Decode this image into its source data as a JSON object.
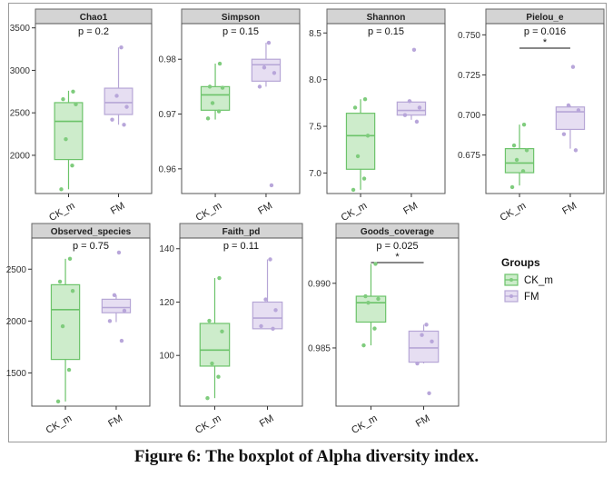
{
  "caption": "Figure 6: The boxplot of Alpha diversity index.",
  "colors": {
    "CK_m": {
      "line": "#6cc36a",
      "fill": "#cdeccb",
      "point": "#7fcc7d"
    },
    "FM": {
      "line": "#b6a6d6",
      "fill": "#e6def2",
      "point": "#b8a6da"
    },
    "strip_fill": "#d4d4d4",
    "strip_border": "#666666",
    "panel_border": "#555555",
    "grid": "#ffffff"
  },
  "legend": {
    "title": "Groups",
    "items": [
      {
        "label": "CK_m",
        "group": "CK_m"
      },
      {
        "label": "FM",
        "group": "FM"
      }
    ]
  },
  "chart_data": [
    {
      "type": "boxplot",
      "title": "Chao1",
      "pvalue": "p = 0.2",
      "significance": "",
      "categories": [
        "CK_m",
        "FM"
      ],
      "ylim": [
        1550,
        3550
      ],
      "yticks": [
        2000,
        2500,
        3000,
        3500
      ],
      "series": [
        {
          "group": "CK_m",
          "min": 1600,
          "q1": 1950,
          "median": 2400,
          "q3": 2620,
          "max": 2760,
          "points": [
            1600,
            1880,
            2190,
            2600,
            2660,
            2750
          ]
        },
        {
          "group": "FM",
          "min": 2360,
          "q1": 2480,
          "median": 2620,
          "q3": 2790,
          "max": 3270,
          "points": [
            2360,
            2420,
            2570,
            2700,
            3270
          ]
        }
      ]
    },
    {
      "type": "boxplot",
      "title": "Simpson",
      "pvalue": "p = 0.15",
      "significance": "",
      "categories": [
        "CK_m",
        "FM"
      ],
      "ylim": [
        0.9555,
        0.9865
      ],
      "yticks": [
        0.96,
        0.97,
        0.98
      ],
      "series": [
        {
          "group": "CK_m",
          "min": 0.969,
          "q1": 0.9707,
          "median": 0.9735,
          "q3": 0.975,
          "max": 0.9792,
          "points": [
            0.9692,
            0.9705,
            0.972,
            0.9748,
            0.975,
            0.9792
          ]
        },
        {
          "group": "FM",
          "min": 0.975,
          "q1": 0.976,
          "median": 0.979,
          "q3": 0.98,
          "max": 0.983,
          "points": [
            0.957,
            0.975,
            0.9775,
            0.9785,
            0.983
          ]
        }
      ]
    },
    {
      "type": "boxplot",
      "title": "Shannon",
      "pvalue": "p = 0.15",
      "significance": "",
      "categories": [
        "CK_m",
        "FM"
      ],
      "ylim": [
        6.78,
        8.6
      ],
      "yticks": [
        7.0,
        7.5,
        8.0,
        8.5
      ],
      "series": [
        {
          "group": "CK_m",
          "min": 6.82,
          "q1": 7.04,
          "median": 7.4,
          "q3": 7.64,
          "max": 7.79,
          "points": [
            6.82,
            6.94,
            7.18,
            7.4,
            7.7,
            7.79
          ]
        },
        {
          "group": "FM",
          "min": 7.57,
          "q1": 7.62,
          "median": 7.67,
          "q3": 7.76,
          "max": 7.77,
          "points": [
            7.55,
            7.62,
            7.7,
            7.77,
            8.32
          ]
        }
      ]
    },
    {
      "type": "boxplot",
      "title": "Pielou_e",
      "pvalue": "p = 0.016",
      "significance": "*",
      "categories": [
        "CK_m",
        "FM"
      ],
      "ylim": [
        0.651,
        0.757
      ],
      "yticks": [
        0.675,
        0.7,
        0.725,
        0.75
      ],
      "series": [
        {
          "group": "CK_m",
          "min": 0.656,
          "q1": 0.664,
          "median": 0.67,
          "q3": 0.679,
          "max": 0.694,
          "points": [
            0.655,
            0.665,
            0.672,
            0.678,
            0.681,
            0.694
          ]
        },
        {
          "group": "FM",
          "min": 0.679,
          "q1": 0.691,
          "median": 0.702,
          "q3": 0.705,
          "max": 0.706,
          "points": [
            0.678,
            0.688,
            0.703,
            0.706,
            0.73
          ]
        }
      ]
    },
    {
      "type": "boxplot",
      "title": "Observed_species",
      "pvalue": "p = 0.75",
      "significance": "",
      "categories": [
        "CK_m",
        "FM"
      ],
      "ylim": [
        1180,
        2800
      ],
      "yticks": [
        1500,
        2000,
        2500
      ],
      "series": [
        {
          "group": "CK_m",
          "min": 1225,
          "q1": 1630,
          "median": 2110,
          "q3": 2350,
          "max": 2600,
          "points": [
            1225,
            1530,
            1950,
            2290,
            2380,
            2600
          ]
        },
        {
          "group": "FM",
          "min": 1990,
          "q1": 2080,
          "median": 2130,
          "q3": 2210,
          "max": 2250,
          "points": [
            1810,
            2000,
            2100,
            2250,
            2660
          ]
        }
      ]
    },
    {
      "type": "boxplot",
      "title": "Faith_pd",
      "pvalue": "p = 0.11",
      "significance": "",
      "categories": [
        "CK_m",
        "FM"
      ],
      "ylim": [
        81,
        144
      ],
      "yticks": [
        100,
        120,
        140
      ],
      "series": [
        {
          "group": "CK_m",
          "min": 84,
          "q1": 96,
          "median": 102,
          "q3": 112,
          "max": 129,
          "points": [
            84,
            92,
            97,
            109,
            113,
            129
          ]
        },
        {
          "group": "FM",
          "min": 110,
          "q1": 110,
          "median": 114,
          "q3": 120,
          "max": 136,
          "points": [
            110,
            111,
            117,
            121,
            136
          ]
        }
      ]
    },
    {
      "type": "boxplot",
      "title": "Goods_coverage",
      "pvalue": "p = 0.025",
      "significance": "*",
      "categories": [
        "CK_m",
        "FM"
      ],
      "ylim": [
        0.9805,
        0.9935
      ],
      "yticks": [
        0.985,
        0.99
      ],
      "series": [
        {
          "group": "CK_m",
          "min": 0.9852,
          "q1": 0.987,
          "median": 0.9885,
          "q3": 0.989,
          "max": 0.9915,
          "points": [
            0.9852,
            0.9865,
            0.9885,
            0.9888,
            0.989,
            0.9915
          ]
        },
        {
          "group": "FM",
          "min": 0.9838,
          "q1": 0.9839,
          "median": 0.985,
          "q3": 0.9863,
          "max": 0.9868,
          "points": [
            0.9815,
            0.9838,
            0.9855,
            0.986,
            0.9868
          ]
        }
      ]
    }
  ]
}
